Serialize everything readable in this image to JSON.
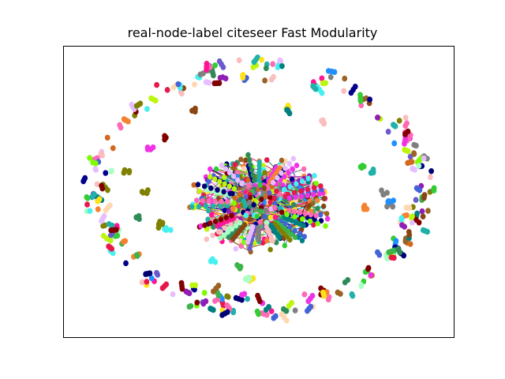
{
  "figure": {
    "title": "real-node-label citeseer Fast Modularity"
  },
  "chart_data": {
    "type": "scatter",
    "title": "real-node-label citeseer Fast Modularity",
    "xlabel": "",
    "ylabel": "",
    "axes_ticks": "none",
    "description_level": "network graph layout, nodes colored by community",
    "palette": [
      "#e6194b",
      "#3cb44b",
      "#ffe119",
      "#4363d8",
      "#f58231",
      "#911eb4",
      "#46f0f0",
      "#f032e6",
      "#bcf60c",
      "#fabebe",
      "#008080",
      "#e6beff",
      "#9a6324",
      "#800000",
      "#aaffc3",
      "#808000",
      "#ffd8b1",
      "#000075",
      "#808080",
      "#1e90ff",
      "#ff1493",
      "#32cd32",
      "#8b4513",
      "#2e8b57",
      "#ff69b4",
      "#6a5acd",
      "#20b2aa",
      "#d2691e",
      "#00008b",
      "#7cfc00"
    ]
  }
}
